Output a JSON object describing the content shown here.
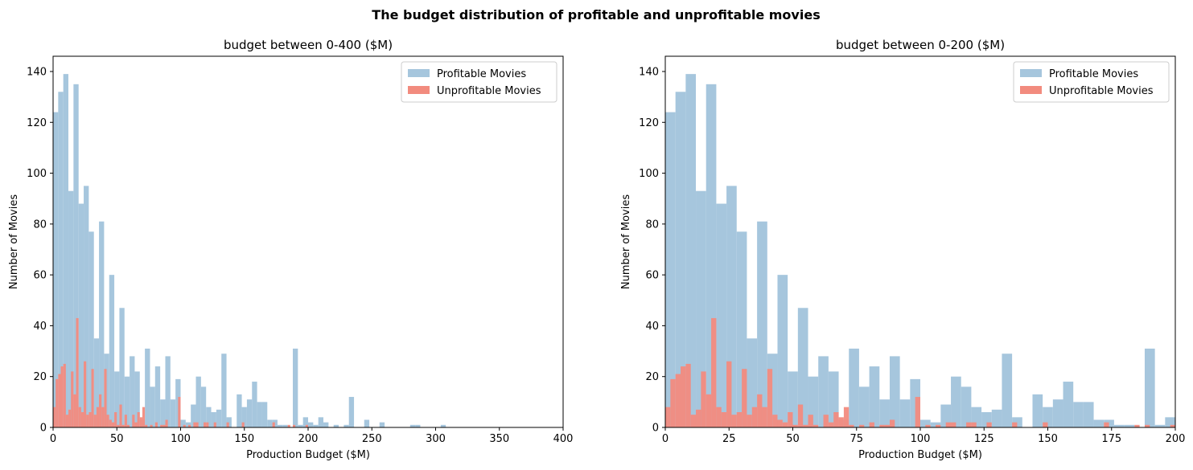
{
  "figure": {
    "suptitle": "The budget distribution of profitable and unprofitable movies"
  },
  "colors": {
    "profitable": "#a6c6dd",
    "unprofitable": "#f28b7e"
  },
  "chart_data": [
    {
      "type": "bar",
      "title": "budget between 0-400 ($M)",
      "xlabel": "Production Budget ($M)",
      "ylabel": "Number of Movies",
      "xlim": [
        0,
        400
      ],
      "ylim": [
        0,
        146
      ],
      "xticks": [
        0,
        50,
        100,
        150,
        200,
        250,
        300,
        350,
        400
      ],
      "yticks": [
        0,
        20,
        40,
        60,
        80,
        100,
        120,
        140
      ],
      "legend": {
        "placement": "top-right",
        "entries": [
          "Profitable Movies",
          "Unprofitable Movies"
        ]
      },
      "series": [
        {
          "name": "Profitable Movies",
          "bin_width": 4,
          "bins": [
            [
              0,
              124
            ],
            [
              4,
              132
            ],
            [
              8,
              139
            ],
            [
              12,
              93
            ],
            [
              16,
              135
            ],
            [
              20,
              88
            ],
            [
              24,
              95
            ],
            [
              28,
              77
            ],
            [
              32,
              35
            ],
            [
              36,
              81
            ],
            [
              40,
              29
            ],
            [
              44,
              60
            ],
            [
              48,
              22
            ],
            [
              52,
              47
            ],
            [
              56,
              20
            ],
            [
              60,
              28
            ],
            [
              64,
              22
            ],
            [
              68,
              3
            ],
            [
              72,
              31
            ],
            [
              76,
              16
            ],
            [
              80,
              24
            ],
            [
              84,
              11
            ],
            [
              88,
              28
            ],
            [
              92,
              11
            ],
            [
              96,
              19
            ],
            [
              100,
              3
            ],
            [
              104,
              2
            ],
            [
              108,
              9
            ],
            [
              112,
              20
            ],
            [
              116,
              16
            ],
            [
              120,
              8
            ],
            [
              124,
              6
            ],
            [
              128,
              7
            ],
            [
              132,
              29
            ],
            [
              136,
              4
            ],
            [
              140,
              0
            ],
            [
              144,
              13
            ],
            [
              148,
              8
            ],
            [
              152,
              11
            ],
            [
              156,
              18
            ],
            [
              160,
              10
            ],
            [
              164,
              10
            ],
            [
              168,
              3
            ],
            [
              172,
              3
            ],
            [
              176,
              1
            ],
            [
              180,
              1
            ],
            [
              184,
              0
            ],
            [
              188,
              31
            ],
            [
              192,
              1
            ],
            [
              196,
              4
            ],
            [
              200,
              2
            ],
            [
              204,
              1
            ],
            [
              208,
              4
            ],
            [
              212,
              2
            ],
            [
              216,
              0
            ],
            [
              220,
              1
            ],
            [
              224,
              0
            ],
            [
              228,
              1
            ],
            [
              232,
              12
            ],
            [
              236,
              0
            ],
            [
              240,
              0
            ],
            [
              244,
              3
            ],
            [
              248,
              0
            ],
            [
              252,
              0
            ],
            [
              256,
              2
            ],
            [
              260,
              0
            ],
            [
              264,
              0
            ],
            [
              268,
              0
            ],
            [
              272,
              0
            ],
            [
              276,
              0
            ],
            [
              280,
              1
            ],
            [
              284,
              1
            ],
            [
              288,
              0
            ],
            [
              292,
              0
            ],
            [
              296,
              0
            ],
            [
              300,
              0
            ],
            [
              304,
              1
            ],
            [
              308,
              0
            ],
            [
              312,
              0
            ],
            [
              316,
              0
            ]
          ]
        },
        {
          "name": "Unprofitable Movies",
          "bin_width": 2,
          "bins": [
            [
              0,
              8
            ],
            [
              2,
              19
            ],
            [
              4,
              21
            ],
            [
              6,
              24
            ],
            [
              8,
              25
            ],
            [
              10,
              5
            ],
            [
              12,
              7
            ],
            [
              14,
              22
            ],
            [
              16,
              13
            ],
            [
              18,
              43
            ],
            [
              20,
              8
            ],
            [
              22,
              6
            ],
            [
              24,
              26
            ],
            [
              26,
              5
            ],
            [
              28,
              6
            ],
            [
              30,
              23
            ],
            [
              32,
              5
            ],
            [
              34,
              8
            ],
            [
              36,
              13
            ],
            [
              38,
              8
            ],
            [
              40,
              23
            ],
            [
              42,
              5
            ],
            [
              44,
              3
            ],
            [
              46,
              2
            ],
            [
              48,
              6
            ],
            [
              50,
              1
            ],
            [
              52,
              9
            ],
            [
              54,
              1
            ],
            [
              56,
              5
            ],
            [
              58,
              1
            ],
            [
              60,
              0
            ],
            [
              62,
              5
            ],
            [
              64,
              2
            ],
            [
              66,
              6
            ],
            [
              68,
              4
            ],
            [
              70,
              8
            ],
            [
              72,
              1
            ],
            [
              74,
              0
            ],
            [
              76,
              1
            ],
            [
              78,
              0
            ],
            [
              80,
              2
            ],
            [
              82,
              0
            ],
            [
              84,
              1
            ],
            [
              86,
              1
            ],
            [
              88,
              3
            ],
            [
              90,
              0
            ],
            [
              92,
              0
            ],
            [
              94,
              0
            ],
            [
              96,
              0
            ],
            [
              98,
              12
            ],
            [
              100,
              0
            ],
            [
              102,
              1
            ],
            [
              104,
              0
            ],
            [
              106,
              1
            ],
            [
              108,
              0
            ],
            [
              110,
              2
            ],
            [
              112,
              2
            ],
            [
              114,
              0
            ],
            [
              116,
              0
            ],
            [
              118,
              2
            ],
            [
              120,
              2
            ],
            [
              122,
              0
            ],
            [
              124,
              0
            ],
            [
              126,
              2
            ],
            [
              128,
              0
            ],
            [
              130,
              0
            ],
            [
              132,
              0
            ],
            [
              134,
              0
            ],
            [
              136,
              2
            ],
            [
              138,
              0
            ],
            [
              148,
              2
            ],
            [
              172,
              2
            ],
            [
              184,
              1
            ],
            [
              188,
              1
            ],
            [
              198,
              1
            ]
          ]
        }
      ]
    },
    {
      "type": "bar",
      "title": "budget between 0-200 ($M)",
      "xlabel": "Production Budget ($M)",
      "ylabel": "Number of Movies",
      "xlim": [
        0,
        200
      ],
      "ylim": [
        0,
        146
      ],
      "xticks": [
        0,
        25,
        50,
        75,
        100,
        125,
        150,
        175,
        200
      ],
      "yticks": [
        0,
        20,
        40,
        60,
        80,
        100,
        120,
        140
      ],
      "legend": {
        "placement": "top-right",
        "entries": [
          "Profitable Movies",
          "Unprofitable Movies"
        ]
      },
      "series": [
        {
          "name": "Profitable Movies",
          "bin_width": 4,
          "bins": [
            [
              0,
              124
            ],
            [
              4,
              132
            ],
            [
              8,
              139
            ],
            [
              12,
              93
            ],
            [
              16,
              135
            ],
            [
              20,
              88
            ],
            [
              24,
              95
            ],
            [
              28,
              77
            ],
            [
              32,
              35
            ],
            [
              36,
              81
            ],
            [
              40,
              29
            ],
            [
              44,
              60
            ],
            [
              48,
              22
            ],
            [
              52,
              47
            ],
            [
              56,
              20
            ],
            [
              60,
              28
            ],
            [
              64,
              22
            ],
            [
              68,
              3
            ],
            [
              72,
              31
            ],
            [
              76,
              16
            ],
            [
              80,
              24
            ],
            [
              84,
              11
            ],
            [
              88,
              28
            ],
            [
              92,
              11
            ],
            [
              96,
              19
            ],
            [
              100,
              3
            ],
            [
              104,
              2
            ],
            [
              108,
              9
            ],
            [
              112,
              20
            ],
            [
              116,
              16
            ],
            [
              120,
              8
            ],
            [
              124,
              6
            ],
            [
              128,
              7
            ],
            [
              132,
              29
            ],
            [
              136,
              4
            ],
            [
              140,
              0
            ],
            [
              144,
              13
            ],
            [
              148,
              8
            ],
            [
              152,
              11
            ],
            [
              156,
              18
            ],
            [
              160,
              10
            ],
            [
              164,
              10
            ],
            [
              168,
              3
            ],
            [
              172,
              3
            ],
            [
              176,
              1
            ],
            [
              180,
              1
            ],
            [
              184,
              0
            ],
            [
              188,
              31
            ],
            [
              192,
              1
            ],
            [
              196,
              4
            ]
          ]
        },
        {
          "name": "Unprofitable Movies",
          "bin_width": 2,
          "bins": [
            [
              0,
              8
            ],
            [
              2,
              19
            ],
            [
              4,
              21
            ],
            [
              6,
              24
            ],
            [
              8,
              25
            ],
            [
              10,
              5
            ],
            [
              12,
              7
            ],
            [
              14,
              22
            ],
            [
              16,
              13
            ],
            [
              18,
              43
            ],
            [
              20,
              8
            ],
            [
              22,
              6
            ],
            [
              24,
              26
            ],
            [
              26,
              5
            ],
            [
              28,
              6
            ],
            [
              30,
              23
            ],
            [
              32,
              5
            ],
            [
              34,
              8
            ],
            [
              36,
              13
            ],
            [
              38,
              8
            ],
            [
              40,
              23
            ],
            [
              42,
              5
            ],
            [
              44,
              3
            ],
            [
              46,
              2
            ],
            [
              48,
              6
            ],
            [
              50,
              1
            ],
            [
              52,
              9
            ],
            [
              54,
              1
            ],
            [
              56,
              5
            ],
            [
              58,
              1
            ],
            [
              60,
              0
            ],
            [
              62,
              5
            ],
            [
              64,
              2
            ],
            [
              66,
              6
            ],
            [
              68,
              4
            ],
            [
              70,
              8
            ],
            [
              72,
              1
            ],
            [
              74,
              0
            ],
            [
              76,
              1
            ],
            [
              78,
              0
            ],
            [
              80,
              2
            ],
            [
              82,
              0
            ],
            [
              84,
              1
            ],
            [
              86,
              1
            ],
            [
              88,
              3
            ],
            [
              90,
              0
            ],
            [
              92,
              0
            ],
            [
              94,
              0
            ],
            [
              96,
              0
            ],
            [
              98,
              12
            ],
            [
              100,
              0
            ],
            [
              102,
              1
            ],
            [
              104,
              0
            ],
            [
              106,
              1
            ],
            [
              108,
              0
            ],
            [
              110,
              2
            ],
            [
              112,
              2
            ],
            [
              114,
              0
            ],
            [
              116,
              0
            ],
            [
              118,
              2
            ],
            [
              120,
              2
            ],
            [
              122,
              0
            ],
            [
              124,
              0
            ],
            [
              126,
              2
            ],
            [
              128,
              0
            ],
            [
              130,
              0
            ],
            [
              132,
              0
            ],
            [
              134,
              0
            ],
            [
              136,
              2
            ],
            [
              138,
              0
            ],
            [
              148,
              2
            ],
            [
              172,
              2
            ],
            [
              184,
              1
            ],
            [
              188,
              1
            ],
            [
              198,
              1
            ]
          ]
        }
      ]
    }
  ]
}
